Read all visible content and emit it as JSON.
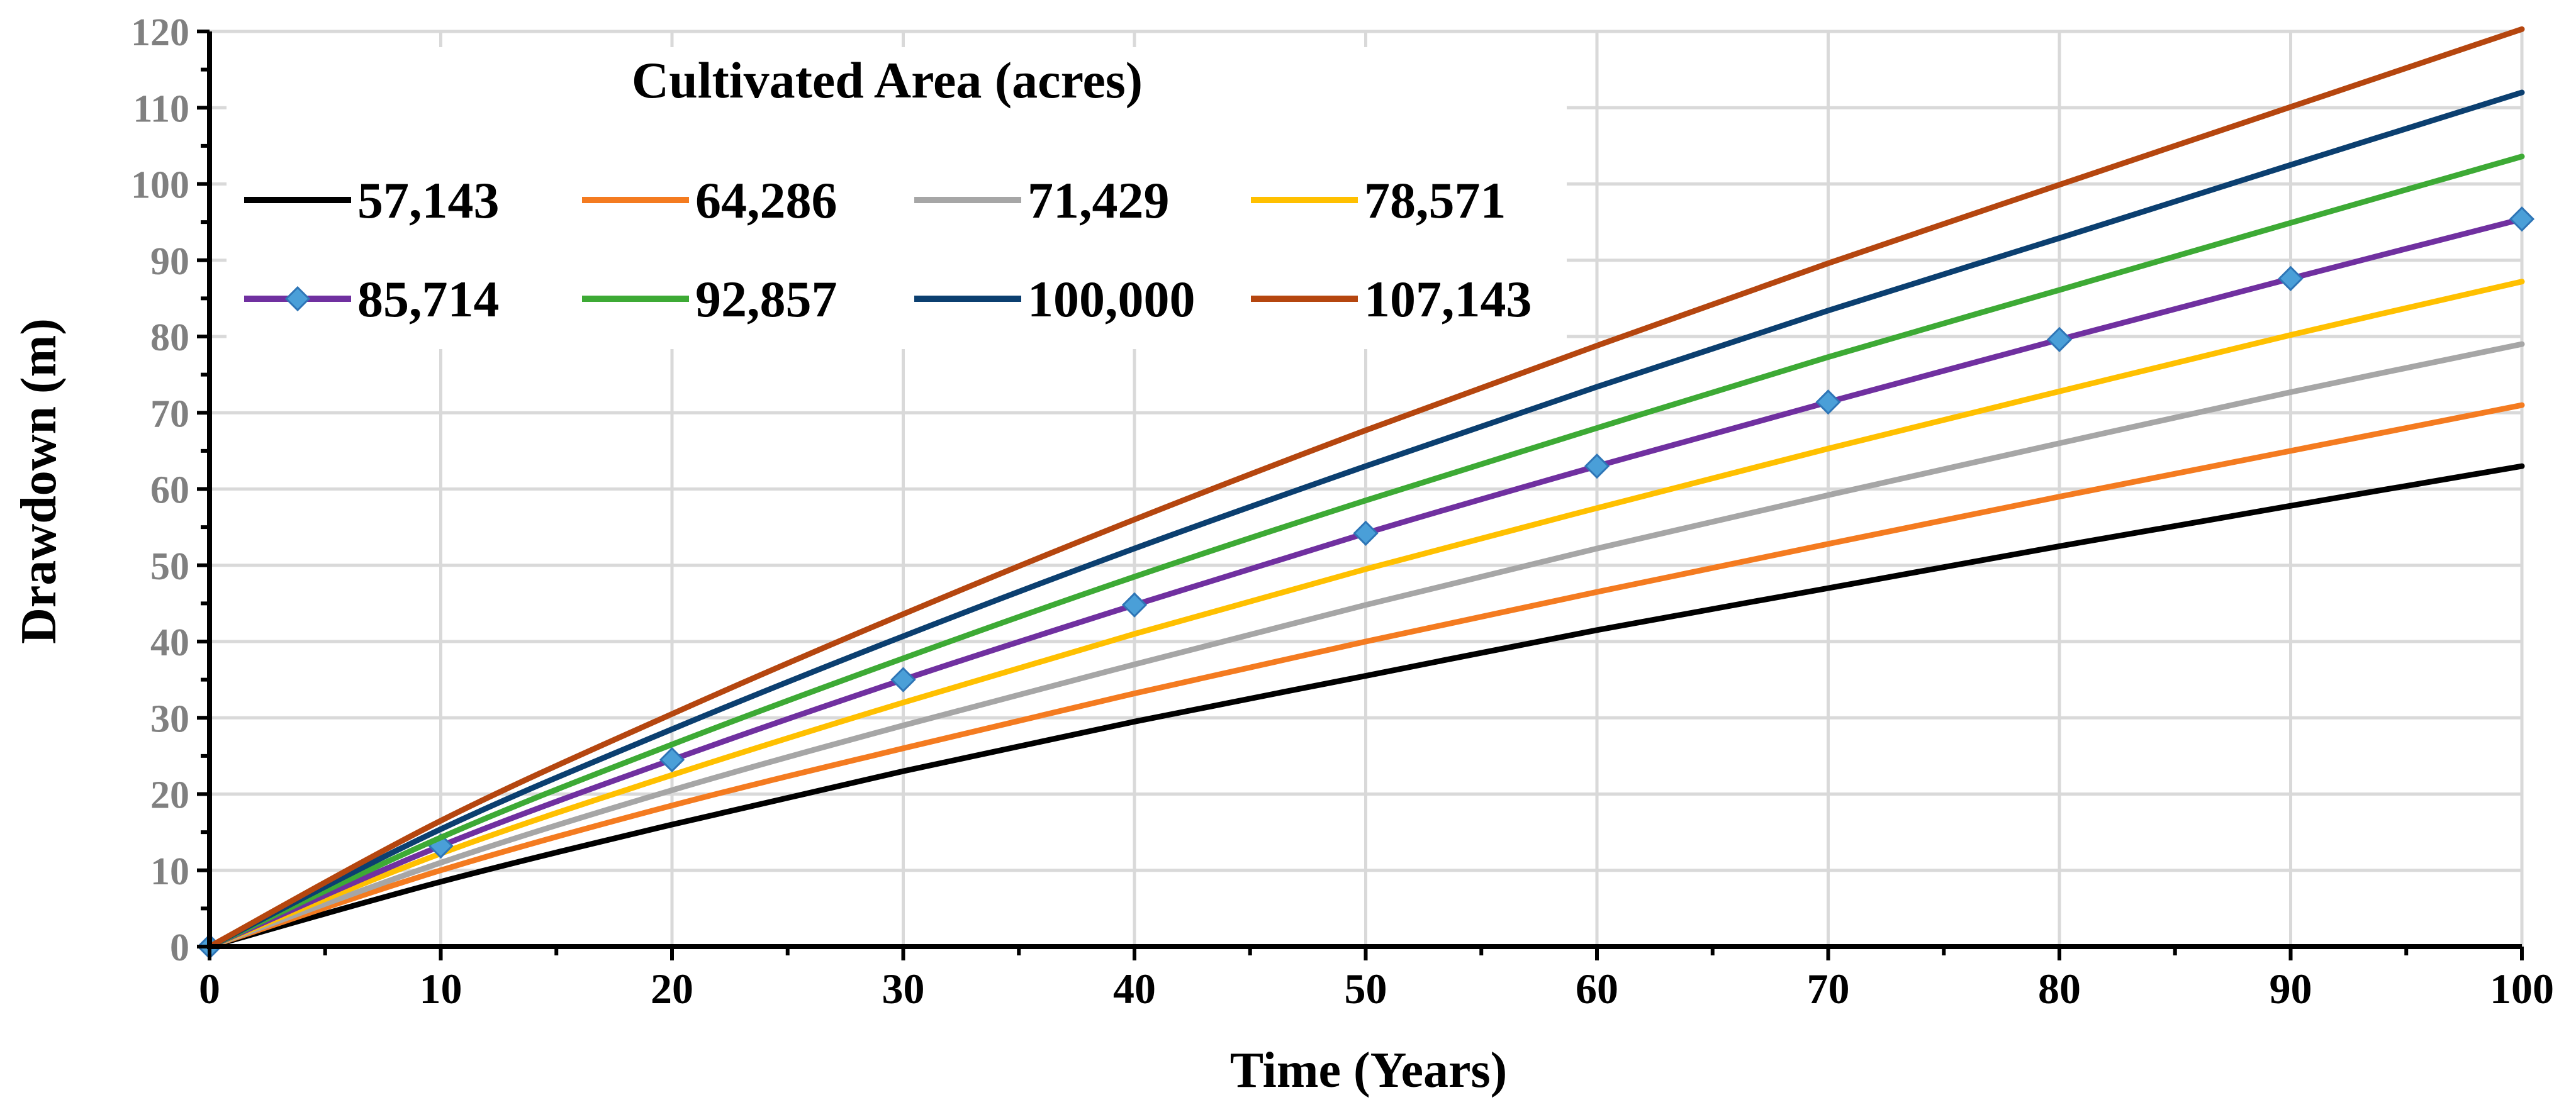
{
  "chart_data": {
    "type": "line",
    "title": "",
    "xlabel": "Time (Years)",
    "ylabel": "Drawdown (m)",
    "xlim": [
      0,
      100
    ],
    "ylim": [
      0,
      120
    ],
    "x_ticks": [
      "0",
      "10",
      "20",
      "30",
      "40",
      "50",
      "60",
      "70",
      "80",
      "90",
      "100"
    ],
    "y_ticks": [
      "0",
      "10",
      "20",
      "30",
      "40",
      "50",
      "60",
      "70",
      "80",
      "90",
      "100",
      "110",
      "120"
    ],
    "grid": true,
    "legend_title": "Cultivated Area (acres)",
    "legend_position": "top-left",
    "x": [
      0,
      10,
      20,
      30,
      40,
      50,
      60,
      70,
      80,
      90,
      100
    ],
    "series": [
      {
        "name": "57,143",
        "color": "#000000",
        "marker": "none",
        "values": [
          0,
          8.5,
          16.0,
          23.0,
          29.5,
          35.5,
          41.5,
          47.0,
          52.5,
          57.8,
          63.0
        ]
      },
      {
        "name": "64,286",
        "color": "#F47B20",
        "marker": "none",
        "values": [
          0,
          10.0,
          18.5,
          26.0,
          33.2,
          40.0,
          46.5,
          52.8,
          59.0,
          65.0,
          71.0
        ]
      },
      {
        "name": "71,429",
        "color": "#A6A6A6",
        "marker": "none",
        "values": [
          0,
          11.0,
          20.5,
          29.0,
          37.0,
          44.8,
          52.2,
          59.2,
          66.0,
          72.7,
          79.0
        ]
      },
      {
        "name": "78,571",
        "color": "#FFC000",
        "marker": "none",
        "values": [
          0,
          12.2,
          22.5,
          32.0,
          41.0,
          49.5,
          57.5,
          65.3,
          72.8,
          80.2,
          87.2
        ]
      },
      {
        "name": "85,714",
        "color": "#7030A0",
        "marker": "diamond",
        "marker_color": "#4A9FD8",
        "values": [
          0,
          13.2,
          24.5,
          35.0,
          44.8,
          54.2,
          63.0,
          71.4,
          79.6,
          87.6,
          95.4
        ]
      },
      {
        "name": "92,857",
        "color": "#3DAA35",
        "marker": "none",
        "values": [
          0,
          14.3,
          26.5,
          37.8,
          48.5,
          58.5,
          68.0,
          77.3,
          86.1,
          94.9,
          103.6
        ]
      },
      {
        "name": "100,000",
        "color": "#0B3F70",
        "marker": "none",
        "values": [
          0,
          15.4,
          28.5,
          40.7,
          52.2,
          63.0,
          73.4,
          83.4,
          92.9,
          102.5,
          112.0
        ]
      },
      {
        "name": "107,143",
        "color": "#B5460F",
        "marker": "none",
        "values": [
          0,
          16.5,
          30.5,
          43.6,
          56.0,
          67.7,
          78.8,
          89.6,
          99.9,
          110.1,
          120.3
        ]
      }
    ]
  }
}
